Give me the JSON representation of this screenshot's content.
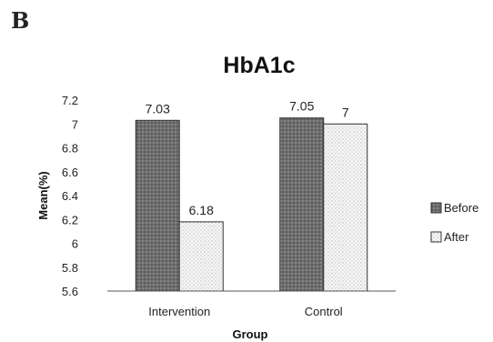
{
  "panel_label": "B",
  "chart_data": {
    "type": "bar",
    "title": "HbA1c",
    "xlabel": "Group",
    "ylabel": "Mean(%)",
    "categories": [
      "Intervention",
      "Control"
    ],
    "ylim": [
      5.6,
      7.2
    ],
    "yticks": [
      5.6,
      5.8,
      6,
      6.2,
      6.4,
      6.6,
      6.8,
      7,
      7.2
    ],
    "grid": false,
    "legend_position": "right",
    "series": [
      {
        "name": "Before",
        "values": [
          7.03,
          7.05
        ],
        "data_labels": [
          "7.03",
          "7.05"
        ],
        "color": "#6e6e6e"
      },
      {
        "name": "After",
        "values": [
          6.18,
          7.0
        ],
        "data_labels": [
          "6.18",
          "7"
        ],
        "color": "#f4f4f4"
      }
    ]
  }
}
